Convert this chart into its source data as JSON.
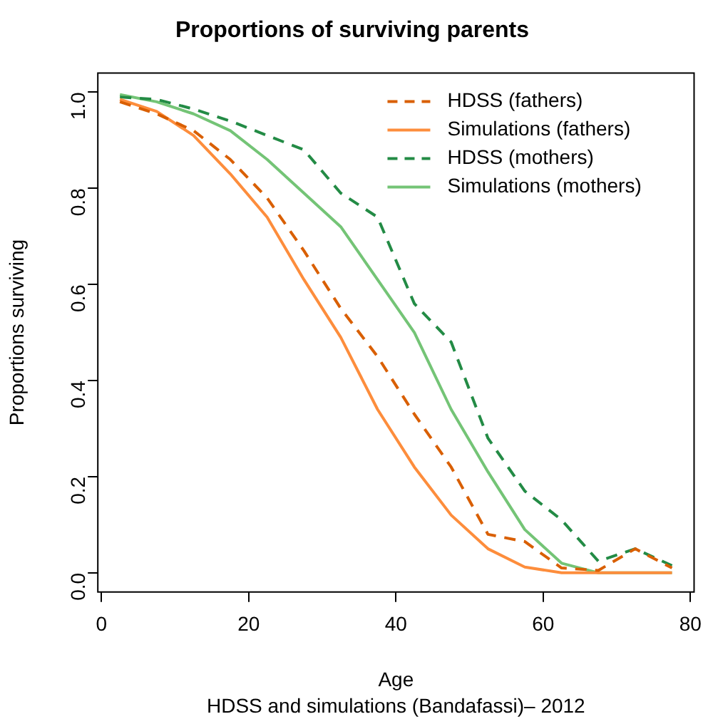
{
  "chart_data": {
    "type": "line",
    "title": "Proportions of surviving parents",
    "xlabel": "Age",
    "ylabel": "Proportions surviving",
    "annotations": [
      "HDSS and simulations (Bandafassi)– 2012"
    ],
    "x": [
      2.5,
      7.5,
      12.5,
      17.5,
      22.5,
      27.5,
      32.5,
      37.5,
      42.5,
      47.5,
      52.5,
      57.5,
      62.5,
      67.5,
      72.5,
      77.5
    ],
    "series": [
      {
        "name": "HDSS (fathers)",
        "color": "#d95f02",
        "line_style": "dashed",
        "values": [
          0.98,
          0.955,
          0.92,
          0.86,
          0.78,
          0.67,
          0.55,
          0.45,
          0.33,
          0.22,
          0.08,
          0.065,
          0.01,
          0.005,
          0.05,
          0.01
        ]
      },
      {
        "name": "Simulations (fathers)",
        "color": "#fd8d3c",
        "line_style": "solid",
        "values": [
          0.985,
          0.96,
          0.91,
          0.83,
          0.74,
          0.61,
          0.49,
          0.34,
          0.22,
          0.12,
          0.05,
          0.012,
          0,
          0,
          0,
          0
        ]
      },
      {
        "name": "HDSS (mothers)",
        "color": "#238b45",
        "line_style": "dashed",
        "values": [
          0.99,
          0.985,
          0.965,
          0.94,
          0.91,
          0.88,
          0.79,
          0.74,
          0.56,
          0.48,
          0.28,
          0.17,
          0.11,
          0.024,
          0.05,
          0.015
        ]
      },
      {
        "name": "Simulations (mothers)",
        "color": "#74c476",
        "line_style": "solid",
        "values": [
          0.995,
          0.98,
          0.955,
          0.92,
          0.86,
          0.79,
          0.72,
          0.61,
          0.5,
          0.34,
          0.21,
          0.09,
          0.02,
          0,
          0,
          0
        ]
      }
    ],
    "xlim": [
      -0.5,
      80.5
    ],
    "ylim": [
      -0.04,
      1.04
    ],
    "xticks": [
      0,
      20,
      40,
      60,
      80
    ],
    "yticks": [
      {
        "value": 0,
        "label": "0.0"
      },
      {
        "value": 0.2,
        "label": "0.2"
      },
      {
        "value": 0.4,
        "label": "0.4"
      },
      {
        "value": 0.6,
        "label": "0.6"
      },
      {
        "value": 0.8,
        "label": "0.8"
      },
      {
        "value": 1,
        "label": "1.0"
      }
    ],
    "grid": false,
    "legend": "top right",
    "marker": "none"
  }
}
